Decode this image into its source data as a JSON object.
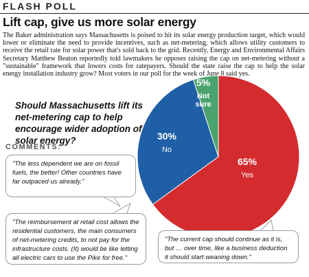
{
  "kicker": "FLASH POLL",
  "headline": "Lift cap, give us more solar energy",
  "body_text": "The Baker administration says Massachusetts is poised to hit its solar energy production target, which would lower or eliminate the need to provide incentives, such as net-metering, which allows utility customers to receive the retail rate for solar power that's sold back to the grid. Recently, Energy and Environmental Affairs Secretary Matthew Beaton reportedly told lawmakers he opposes raising the cap on net-metering without a \"sustainable\" framework that lowers costs for ratepayers. Should the state raise the cap to help the solar energy installation industry grow? Most voters in our poll for the week of June 8 said yes.",
  "question": "Should Massachusetts lift its net-metering cap to help encourage wider adoption of solar energy?",
  "comments_label": "COMMENTS:",
  "comments": [
    "\"The less dependent we are on fossil fuels, the better! Other countries have far outpaced us already.\"",
    "\"The reimbursement at retail cost allows the residential customers, the main consumers of net-metering credits, to not pay for the infrastructure costs. (It) would be like letting all electric cars to use the Pike for free.\"",
    "\"The current cap should continue as it is, but … over time, like a business deduction it should start weaning down.\""
  ],
  "chart_data": {
    "type": "pie",
    "slices": [
      {
        "label": "Yes",
        "value": 65,
        "value_label": "65%",
        "color": "#d42b2e"
      },
      {
        "label": "No",
        "value": 30,
        "value_label": "30%",
        "color": "#1e5fa6"
      },
      {
        "label": "Not sure",
        "label_lines": [
          "Not",
          "sure"
        ],
        "value": 5,
        "value_label": "5%",
        "color": "#4aa36c"
      }
    ]
  }
}
